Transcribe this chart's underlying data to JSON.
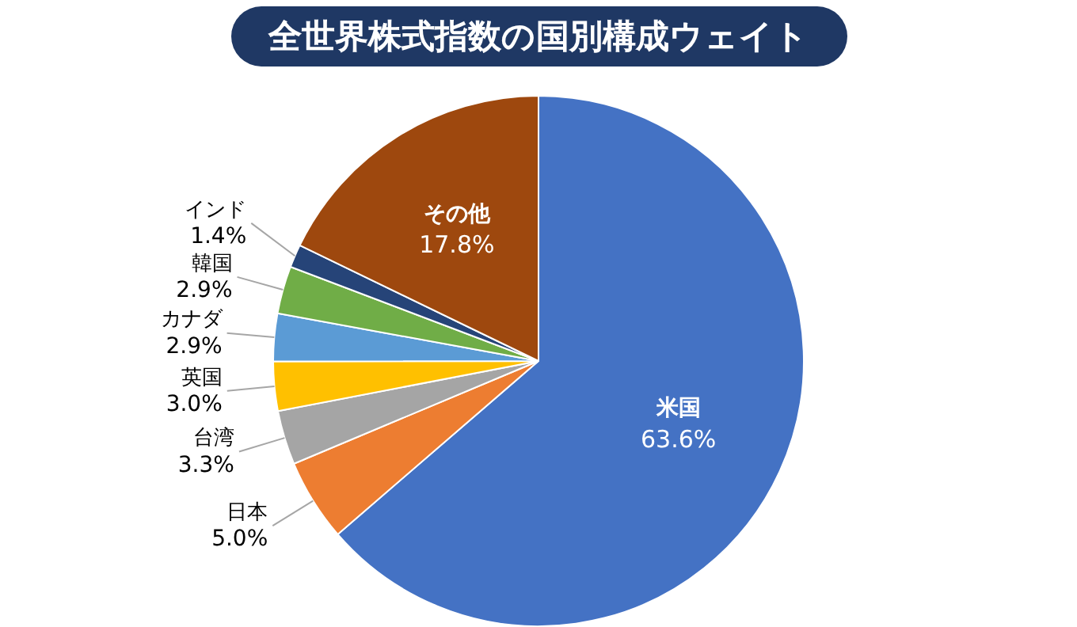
{
  "chart_data": {
    "type": "pie",
    "title": "全世界株式指数の国別構成ウェイト",
    "categories": [
      "米国",
      "日本",
      "台湾",
      "英国",
      "カナダ",
      "韓国",
      "インド",
      "その他"
    ],
    "values": [
      63.6,
      5.0,
      3.3,
      3.0,
      2.9,
      2.9,
      1.4,
      17.8
    ],
    "colors": [
      "#4472c4",
      "#ed7d31",
      "#a5a5a5",
      "#ffc000",
      "#5b9bd5",
      "#70ad47",
      "#264478",
      "#9e480e"
    ],
    "value_labels": [
      "63.6%",
      "5.0%",
      "3.3%",
      "3.0%",
      "2.9%",
      "2.9%",
      "1.4%",
      "17.8%"
    ],
    "legend": false
  }
}
